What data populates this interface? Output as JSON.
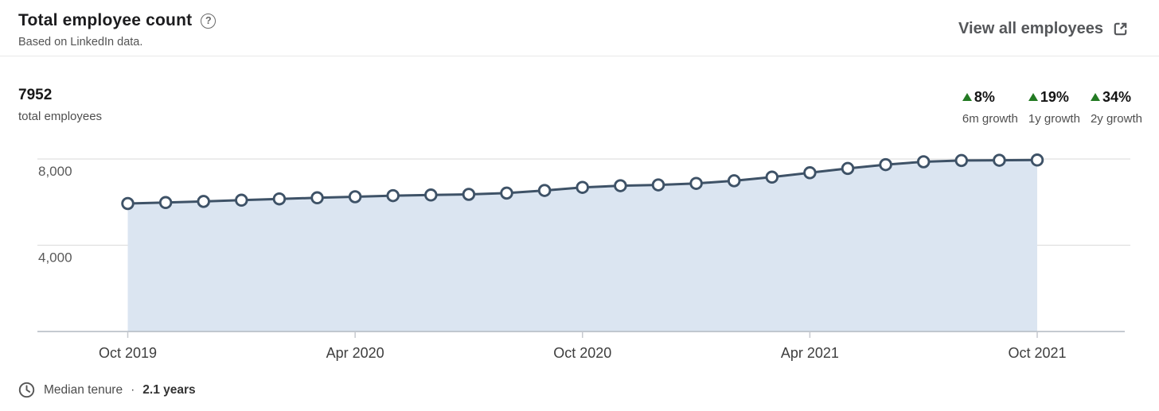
{
  "header": {
    "title": "Total employee count",
    "help_icon_glyph": "?",
    "subtitle": "Based on LinkedIn data.",
    "view_all_label": "View all employees"
  },
  "stats": {
    "total_value": "7952",
    "total_label": "total employees",
    "growth": [
      {
        "value": "8%",
        "label": "6m growth",
        "direction": "up"
      },
      {
        "value": "19%",
        "label": "1y growth",
        "direction": "up"
      },
      {
        "value": "34%",
        "label": "2y growth",
        "direction": "up"
      }
    ]
  },
  "footer": {
    "label": "Median tenure",
    "separator": "·",
    "value": "2.1 years"
  },
  "colors": {
    "line": "#3e5267",
    "area_fill": "#dbe5f1",
    "marker_fill": "#ffffff",
    "growth_green": "#237a23",
    "gridline": "#e0e0e0",
    "axis_line": "#b2b9c2",
    "tick": "#c6c9cf",
    "y_label": "#5a5a5a",
    "x_label": "#3e3e3e"
  },
  "chart_data": {
    "type": "area",
    "title": "Total employee count",
    "xlabel": "",
    "ylabel": "employees",
    "x": [
      "Oct 2019",
      "Nov 2019",
      "Dec 2019",
      "Jan 2020",
      "Feb 2020",
      "Mar 2020",
      "Apr 2020",
      "May 2020",
      "Jun 2020",
      "Jul 2020",
      "Aug 2020",
      "Sep 2020",
      "Oct 2020",
      "Nov 2020",
      "Dec 2020",
      "Jan 2021",
      "Feb 2021",
      "Mar 2021",
      "Apr 2021",
      "May 2021",
      "Jun 2021",
      "Jul 2021",
      "Aug 2021",
      "Sep 2021",
      "Oct 2021"
    ],
    "values": [
      5934,
      5980,
      6030,
      6090,
      6150,
      6200,
      6250,
      6300,
      6330,
      6360,
      6420,
      6540,
      6683,
      6760,
      6800,
      6870,
      6990,
      7160,
      7363,
      7560,
      7740,
      7870,
      7930,
      7940,
      7952
    ],
    "latest_value": 7952,
    "y_ticks": [
      {
        "value": 8000,
        "label": "8,000"
      },
      {
        "value": 4000,
        "label": "4,000"
      }
    ],
    "x_tick_indices": [
      0,
      6,
      12,
      18,
      24
    ],
    "ylim": [
      0,
      8740
    ],
    "grid": true,
    "legend_position": "none"
  }
}
